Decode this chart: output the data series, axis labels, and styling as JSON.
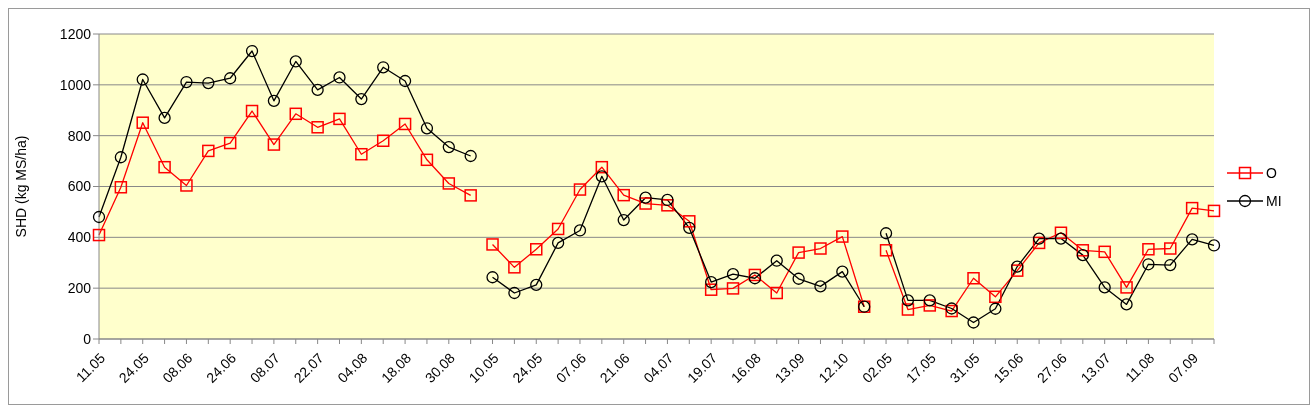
{
  "chart_data": {
    "type": "line",
    "ylabel": "SHD (kg MS/ha)",
    "categories": [
      "11.05",
      null,
      "24.05",
      null,
      "08.06",
      null,
      "24.06",
      null,
      "08.07",
      null,
      "22.07",
      null,
      "04.08",
      null,
      "18.08",
      null,
      "30.08",
      null,
      "10.05",
      null,
      "24.05",
      null,
      "07.06",
      null,
      "21.06",
      null,
      "04.07",
      null,
      "19.07",
      null,
      "16.08",
      null,
      "13.09",
      null,
      "12.10",
      null,
      "02.05",
      null,
      "17.05",
      null,
      "31.05",
      null,
      "15.06",
      null,
      "27.06",
      null,
      "13.07",
      null,
      "11.08",
      null,
      "07.09",
      null
    ],
    "series": [
      {
        "name": "O",
        "color": "#ff0000",
        "marker": "square",
        "values": [
          409,
          597,
          851,
          676,
          604,
          740,
          771,
          897,
          765,
          886,
          833,
          866,
          727,
          780,
          846,
          705,
          612,
          565,
          null,
          null,
          null,
          null,
          null,
          null,
          null,
          null,
          null,
          null,
          null,
          null,
          null,
          null,
          null,
          null,
          null,
          null,
          null,
          null,
          null,
          null,
          null,
          null,
          null,
          null,
          null,
          null,
          null,
          null,
          null,
          null,
          null,
          null
        ]
      },
      {
        "name": "MI",
        "color": "#000000",
        "marker": "circle",
        "values": [
          480,
          715,
          1021,
          870,
          1011,
          1007,
          1026,
          1133,
          937,
          1092,
          980,
          1029,
          944,
          1069,
          1015,
          829,
          755,
          720,
          null,
          null,
          null,
          null,
          null,
          null,
          null,
          null,
          null,
          null,
          null,
          null,
          null,
          null,
          null,
          null,
          null,
          null,
          null,
          null,
          null,
          null,
          null,
          null,
          null,
          null,
          null,
          null,
          null,
          null,
          null,
          null,
          null,
          null
        ]
      },
      {
        "color": "#ff0000",
        "marker": "square",
        "values": [
          null,
          null,
          null,
          null,
          null,
          null,
          null,
          null,
          null,
          null,
          null,
          null,
          null,
          null,
          null,
          null,
          null,
          null,
          372,
          282,
          353,
          433,
          588,
          676,
          566,
          533,
          526,
          463,
          194,
          199,
          252,
          181,
          340,
          356,
          403,
          127,
          null,
          null,
          null,
          null,
          null,
          null,
          null,
          null,
          null,
          null,
          null,
          null,
          null,
          null,
          null,
          null
        ]
      },
      {
        "color": "#000000",
        "marker": "circle",
        "values": [
          null,
          null,
          null,
          null,
          null,
          null,
          null,
          null,
          null,
          null,
          null,
          null,
          null,
          null,
          null,
          null,
          null,
          null,
          243,
          181,
          213,
          378,
          427,
          640,
          468,
          556,
          547,
          437,
          224,
          255,
          239,
          308,
          237,
          207,
          265,
          127,
          null,
          null,
          null,
          null,
          null,
          null,
          null,
          null,
          null,
          null,
          null,
          null,
          null,
          null,
          null,
          null
        ]
      },
      {
        "color": "#ff0000",
        "marker": "square",
        "values": [
          null,
          null,
          null,
          null,
          null,
          null,
          null,
          null,
          null,
          null,
          null,
          null,
          null,
          null,
          null,
          null,
          null,
          null,
          null,
          null,
          null,
          null,
          null,
          null,
          null,
          null,
          null,
          null,
          null,
          null,
          null,
          null,
          null,
          null,
          null,
          null,
          349,
          116,
          132,
          110,
          239,
          166,
          269,
          378,
          418,
          349,
          343,
          203,
          353,
          356,
          515,
          504
        ]
      },
      {
        "color": "#000000",
        "marker": "circle",
        "values": [
          null,
          null,
          null,
          null,
          null,
          null,
          null,
          null,
          null,
          null,
          null,
          null,
          null,
          null,
          null,
          null,
          null,
          null,
          null,
          null,
          null,
          null,
          null,
          null,
          null,
          null,
          null,
          null,
          null,
          null,
          null,
          null,
          null,
          null,
          null,
          null,
          416,
          152,
          152,
          120,
          65,
          119,
          285,
          395,
          395,
          330,
          203,
          136,
          294,
          291,
          392,
          368
        ]
      }
    ],
    "ylim": [
      0,
      1200
    ],
    "yticks": [
      0,
      200,
      400,
      600,
      800,
      1000,
      1200
    ],
    "grid": "y",
    "legend": "right"
  }
}
